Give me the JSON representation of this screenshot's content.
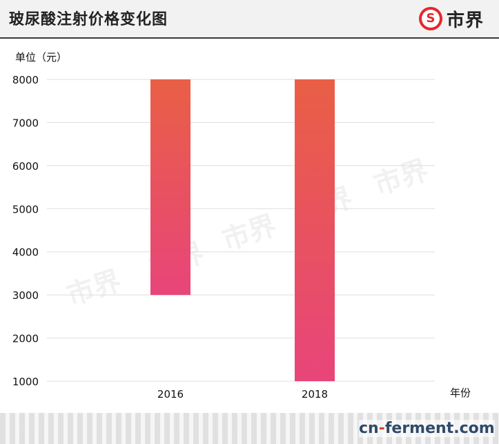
{
  "header": {
    "title": "玻尿酸注射价格变化图",
    "logo_text": "市界",
    "logo_mark": "S"
  },
  "unit_label": "单位（元）",
  "x_axis_title": "年份",
  "watermark_text": "市界",
  "source": {
    "left": "cn",
    "hyphen": "-",
    "right": "ferment.com"
  },
  "colors": {
    "bar_top": "#e95f45",
    "bar_bottom": "#e8457a",
    "grid": "#dddddd",
    "header_bg": "#f2f2f2",
    "brand_red": "#e8262a"
  },
  "chart_data": {
    "type": "bar",
    "subtype": "floating-range",
    "categories": [
      "2016",
      "2018"
    ],
    "series": [
      {
        "low": [
          3000,
          1000
        ],
        "high": [
          8000,
          8000
        ]
      }
    ],
    "y_ticks": [
      1000,
      2000,
      3000,
      4000,
      5000,
      6000,
      7000,
      8000
    ],
    "ylim": [
      1000,
      8000
    ],
    "grid": true,
    "legend": "none"
  }
}
